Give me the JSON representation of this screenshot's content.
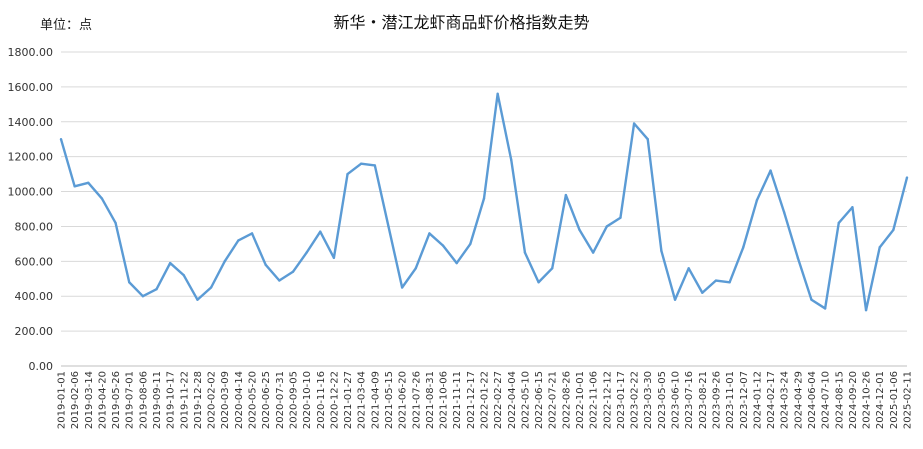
{
  "chart_data": {
    "type": "line",
    "title": "新华・潜江龙虾商品虾价格指数走势",
    "unit_label": "单位：点",
    "ylim": [
      0,
      1800
    ],
    "yticks": [
      "0.00",
      "200.00",
      "400.00",
      "600.00",
      "800.00",
      "1000.00",
      "1200.00",
      "1400.00",
      "1600.00",
      "1800.00"
    ],
    "grid": true,
    "legend": "none",
    "line_color": "#5b9bd5",
    "categories": [
      "2019-01-01",
      "2019-02-06",
      "2019-03-14",
      "2019-04-20",
      "2019-05-26",
      "2019-07-01",
      "2019-08-06",
      "2019-09-11",
      "2019-10-17",
      "2019-11-22",
      "2019-12-28",
      "2020-02-02",
      "2020-03-09",
      "2020-04-14",
      "2020-05-20",
      "2020-06-25",
      "2020-07-31",
      "2020-09-05",
      "2020-10-10",
      "2020-11-16",
      "2020-12-22",
      "2021-01-27",
      "2021-03-04",
      "2021-04-09",
      "2021-05-15",
      "2021-06-20",
      "2021-07-26",
      "2021-08-31",
      "2021-10-06",
      "2021-11-11",
      "2021-12-17",
      "2022-01-22",
      "2022-02-27",
      "2022-04-04",
      "2022-05-10",
      "2022-06-15",
      "2022-07-21",
      "2022-08-26",
      "2022-10-01",
      "2022-11-06",
      "2022-12-12",
      "2023-01-17",
      "2023-02-22",
      "2023-03-30",
      "2023-05-05",
      "2023-06-10",
      "2023-07-16",
      "2023-08-21",
      "2023-09-26",
      "2023-11-01",
      "2023-12-07",
      "2024-01-12",
      "2024-02-17",
      "2024-03-24",
      "2024-04-29",
      "2024-06-04",
      "2024-07-10",
      "2024-08-15",
      "2024-09-20",
      "2024-10-26",
      "2024-12-01",
      "2025-01-06",
      "2025-02-11"
    ],
    "values": [
      1300,
      1030,
      1050,
      960,
      820,
      480,
      400,
      440,
      590,
      520,
      380,
      450,
      600,
      720,
      760,
      580,
      490,
      540,
      650,
      770,
      620,
      1100,
      1160,
      1150,
      800,
      450,
      560,
      760,
      690,
      590,
      700,
      960,
      1560,
      1180,
      650,
      480,
      560,
      980,
      780,
      650,
      800,
      850,
      1390,
      1300,
      660,
      380,
      560,
      420,
      490,
      480,
      680,
      950,
      1120,
      880,
      620,
      380,
      330,
      820,
      910,
      320,
      680,
      780,
      1080
    ]
  }
}
